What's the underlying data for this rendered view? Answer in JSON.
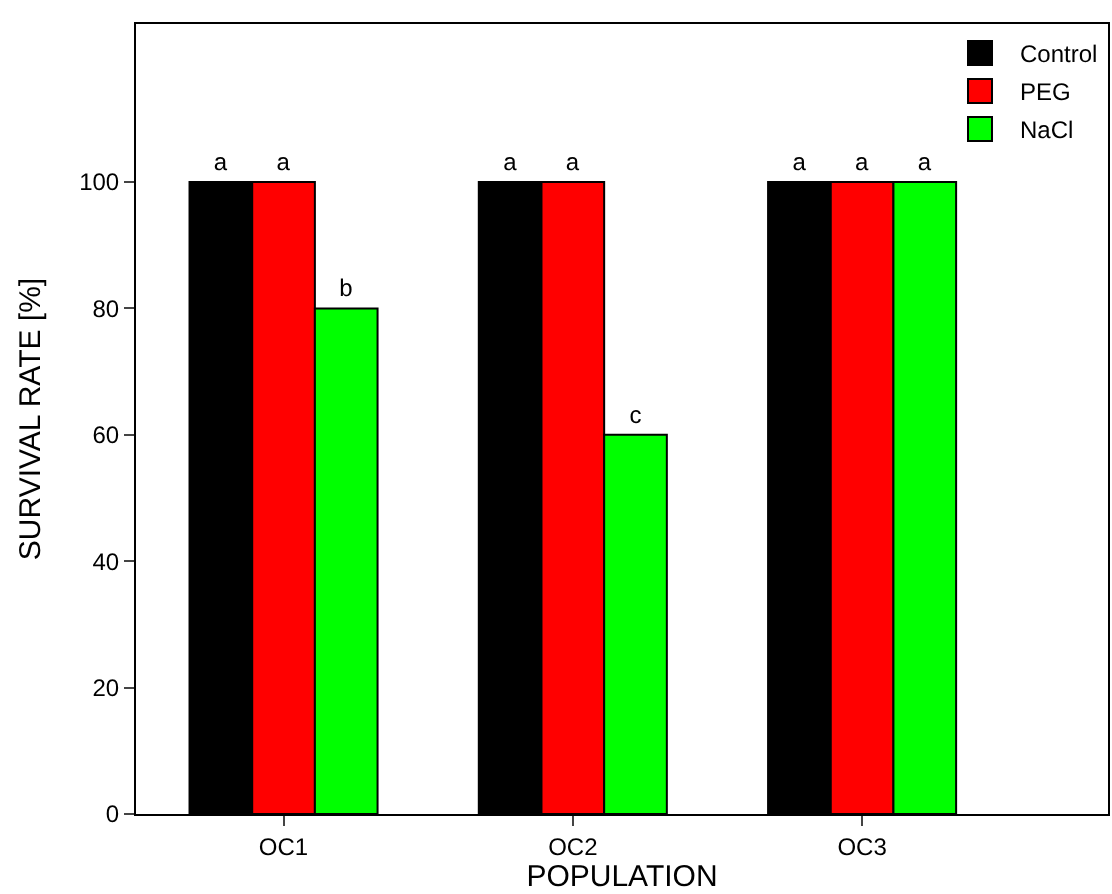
{
  "chart_data": {
    "type": "bar",
    "xlabel": "POPULATION",
    "ylabel": "SURVIVAL RATE [%]",
    "categories": [
      "OC1",
      "OC2",
      "OC3"
    ],
    "series": [
      {
        "name": "Control",
        "color": "#000000",
        "values": [
          100,
          100,
          100
        ],
        "value_labels": [
          "a",
          "a",
          "a"
        ]
      },
      {
        "name": "PEG",
        "color": "#ff0000",
        "values": [
          100,
          100,
          100
        ],
        "value_labels": [
          "a",
          "a",
          "a"
        ]
      },
      {
        "name": "NaCl",
        "color": "#00ff00",
        "values": [
          80,
          60,
          100
        ],
        "value_labels": [
          "b",
          "c",
          "a"
        ]
      }
    ],
    "ylim": [
      0,
      125
    ],
    "yticks": [
      0,
      20,
      40,
      60,
      80,
      100
    ],
    "legend": "top right"
  }
}
